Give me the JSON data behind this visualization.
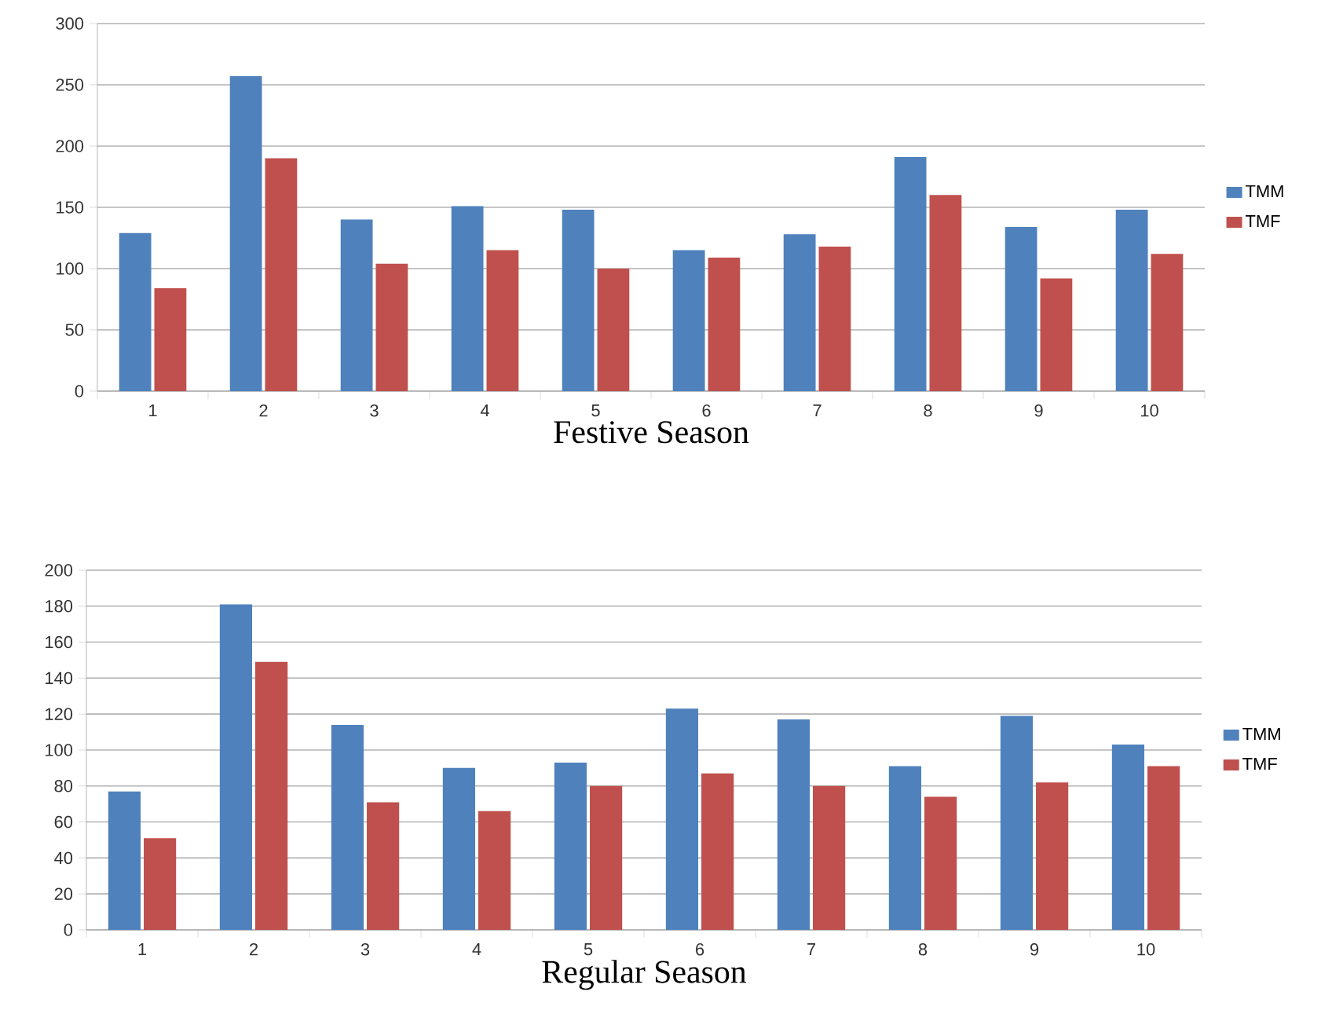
{
  "chart_data": [
    {
      "type": "bar",
      "xlabel": "Festive Season",
      "categories": [
        "1",
        "2",
        "3",
        "4",
        "5",
        "6",
        "7",
        "8",
        "9",
        "10"
      ],
      "series": [
        {
          "name": "TMM",
          "color": "#4f81bd",
          "values": [
            129,
            257,
            140,
            151,
            148,
            115,
            128,
            191,
            134,
            148
          ]
        },
        {
          "name": "TMF",
          "color": "#c0504d",
          "values": [
            84,
            190,
            104,
            115,
            100,
            109,
            118,
            160,
            92,
            112
          ]
        }
      ],
      "ylim": [
        0,
        300
      ],
      "yticks": [
        0,
        50,
        100,
        150,
        200,
        250,
        300
      ],
      "grid": "y",
      "legend": "right"
    },
    {
      "type": "bar",
      "xlabel": "Regular Season",
      "categories": [
        "1",
        "2",
        "3",
        "4",
        "5",
        "6",
        "7",
        "8",
        "9",
        "10"
      ],
      "series": [
        {
          "name": "TMM",
          "color": "#4f81bd",
          "values": [
            77,
            181,
            114,
            90,
            93,
            123,
            117,
            91,
            119,
            103
          ]
        },
        {
          "name": "TMF",
          "color": "#c0504d",
          "values": [
            51,
            149,
            71,
            66,
            80,
            87,
            80,
            74,
            82,
            91
          ]
        }
      ],
      "ylim": [
        0,
        200
      ],
      "yticks": [
        0,
        20,
        40,
        60,
        80,
        100,
        120,
        140,
        160,
        180,
        200
      ],
      "grid": "y",
      "legend": "right"
    }
  ]
}
